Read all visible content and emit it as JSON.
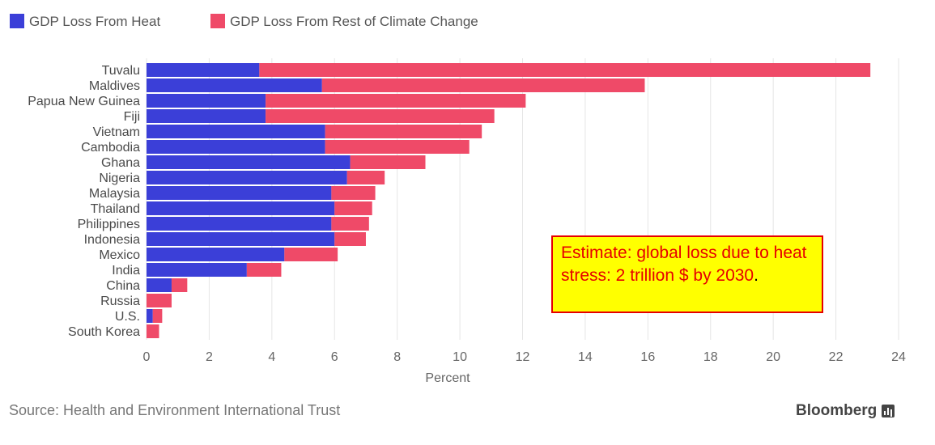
{
  "colors": {
    "heat": "#3b3fd8",
    "rest": "#ef4a68",
    "grid": "#e6e6e6"
  },
  "source": "Source: Health and Environment International Trust",
  "brand": "Bloomberg",
  "brand_icon": "bloomberg-chart-icon",
  "annotation": {
    "text": "Estimate: global loss due to heat stress: 2 trillion $ by 2030",
    "period": "."
  },
  "chart_data": {
    "type": "bar",
    "orientation": "horizontal",
    "stacked": true,
    "title": "",
    "xlabel": "Percent",
    "ylabel": "",
    "xlim": [
      0,
      24
    ],
    "xticks": [
      0,
      2,
      4,
      6,
      8,
      10,
      12,
      14,
      16,
      18,
      20,
      22,
      24
    ],
    "grid": true,
    "legend": "top-left",
    "categories": [
      "Tuvalu",
      "Maldives",
      "Papua New Guinea",
      "Fiji",
      "Vietnam",
      "Cambodia",
      "Ghana",
      "Nigeria",
      "Malaysia",
      "Thailand",
      "Philippines",
      "Indonesia",
      "Mexico",
      "India",
      "China",
      "Russia",
      "U.S.",
      "South Korea"
    ],
    "series": [
      {
        "name": "GDP Loss From Heat",
        "values": [
          3.6,
          5.6,
          3.8,
          3.8,
          5.7,
          5.7,
          6.5,
          6.4,
          5.9,
          6.0,
          5.9,
          6.0,
          4.4,
          3.2,
          0.8,
          0.0,
          0.2,
          0.0
        ]
      },
      {
        "name": "GDP Loss From Rest of Climate Change",
        "values": [
          19.5,
          10.3,
          8.3,
          7.3,
          5.0,
          4.6,
          2.4,
          1.2,
          1.4,
          1.2,
          1.2,
          1.0,
          1.7,
          1.1,
          0.5,
          0.8,
          0.3,
          0.4
        ]
      }
    ]
  }
}
